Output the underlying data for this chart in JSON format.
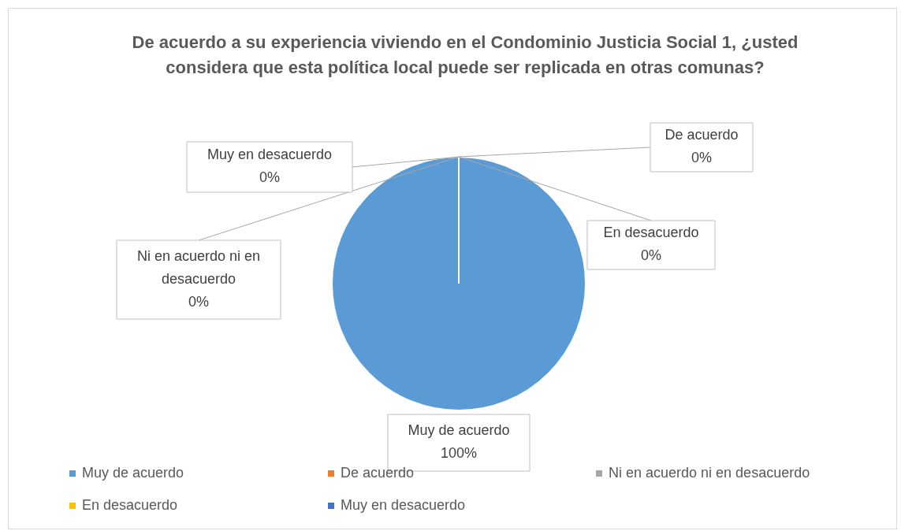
{
  "chart_data": {
    "type": "pie",
    "title": "De acuerdo a su experiencia viviendo en el Condominio Justicia Social 1, ¿usted considera que esta política local puede ser replicada en otras comunas?",
    "categories": [
      "Muy de acuerdo",
      "De acuerdo",
      "Ni en acuerdo ni en desacuerdo",
      "En desacuerdo",
      "Muy en desacuerdo"
    ],
    "values": [
      100,
      0,
      0,
      0,
      0
    ],
    "colors": [
      "#5b9bd5",
      "#ed7d31",
      "#a5a5a5",
      "#ffc000",
      "#4472c4"
    ],
    "value_labels": [
      "100%",
      "0%",
      "0%",
      "0%",
      "0%"
    ],
    "legend": "bottom"
  }
}
